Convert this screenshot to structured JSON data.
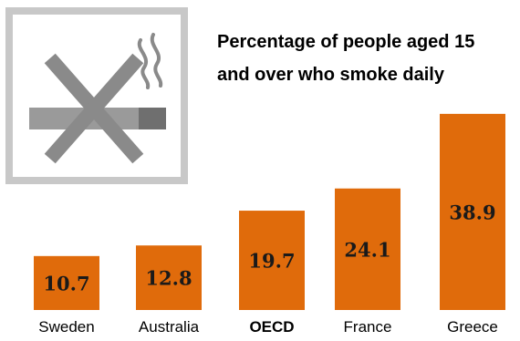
{
  "title_lines": [
    "Percentage of people aged 15",
    "and over who smoke daily"
  ],
  "icon": "no-smoking-icon",
  "colors": {
    "bar": "#e06b0b",
    "icon_frame": "#c8c8c8",
    "icon_fill": "#7b7b7b",
    "icon_cross": "#8a8a8a"
  },
  "chart_data": {
    "type": "bar",
    "title": "Percentage of people aged 15 and over who smoke daily",
    "categories": [
      "Sweden",
      "Australia",
      "OECD",
      "France",
      "Greece"
    ],
    "values": [
      10.7,
      12.8,
      19.7,
      24.1,
      38.9
    ],
    "highlight": "OECD",
    "data_labels": true,
    "grid": false,
    "y_axis": false
  }
}
